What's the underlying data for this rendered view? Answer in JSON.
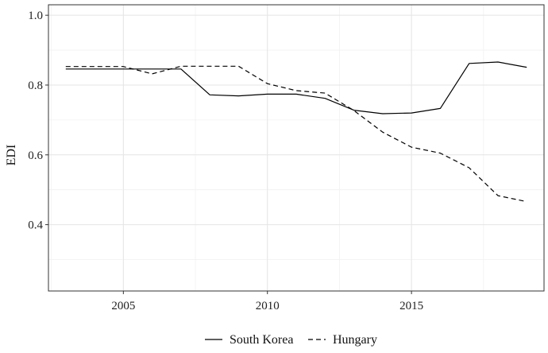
{
  "chart_data": {
    "type": "line",
    "title": "",
    "xlabel": "",
    "ylabel": "EDI",
    "xlim": [
      2002.4,
      2019.6
    ],
    "ylim": [
      0.21,
      1.03
    ],
    "x_ticks": [
      2005,
      2010,
      2015
    ],
    "x_tick_labels": [
      "2005",
      "2010",
      "2015"
    ],
    "y_ticks": [
      0.4,
      0.6,
      0.8,
      1.0
    ],
    "y_tick_labels": [
      "0.4",
      "0.6",
      "0.8",
      "1.0"
    ],
    "grid": true,
    "legend_position": "bottom",
    "x": [
      2003,
      2004,
      2005,
      2006,
      2007,
      2008,
      2009,
      2010,
      2011,
      2012,
      2013,
      2014,
      2015,
      2016,
      2017,
      2018,
      2019
    ],
    "series": [
      {
        "name": "South Korea",
        "dash": "solid",
        "color": "#000000",
        "values": [
          0.846,
          0.846,
          0.846,
          0.846,
          0.846,
          0.772,
          0.769,
          0.774,
          0.774,
          0.762,
          0.728,
          0.718,
          0.72,
          0.733,
          0.862,
          0.866,
          0.851
        ]
      },
      {
        "name": "Hungary",
        "dash": "dashed",
        "color": "#000000",
        "values": [
          0.853,
          0.853,
          0.853,
          0.832,
          0.854,
          0.854,
          0.854,
          0.804,
          0.784,
          0.777,
          0.727,
          0.665,
          0.622,
          0.605,
          0.563,
          0.483,
          0.466
        ]
      }
    ]
  }
}
